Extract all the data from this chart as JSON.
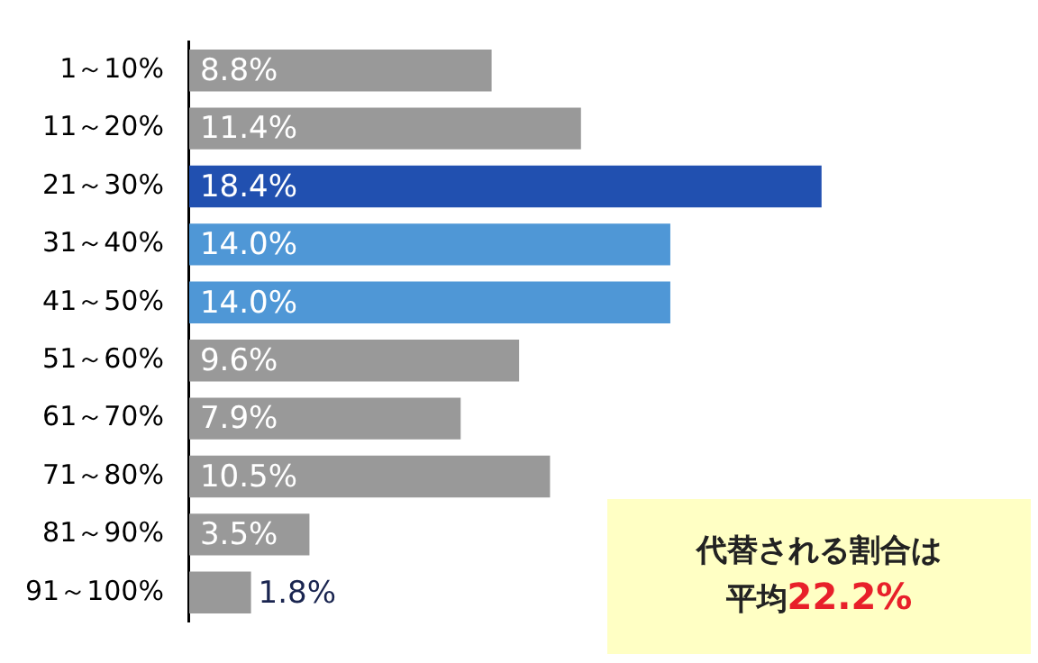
{
  "chart_data": {
    "type": "bar",
    "orientation": "horizontal",
    "categories": [
      "1～10%",
      "11～20%",
      "21～30%",
      "31～40%",
      "41～50%",
      "51～60%",
      "61～70%",
      "71～80%",
      "81～90%",
      "91～100%"
    ],
    "values": [
      8.8,
      11.4,
      18.4,
      14.0,
      14.0,
      9.6,
      7.9,
      10.5,
      3.5,
      1.8
    ],
    "colors": [
      "#999999",
      "#999999",
      "#2150b0",
      "#4f97d6",
      "#4f97d6",
      "#999999",
      "#999999",
      "#999999",
      "#999999",
      "#999999"
    ],
    "value_labels": [
      "8.8%",
      "11.4%",
      "18.4%",
      "14.0%",
      "14.0%",
      "9.6%",
      "7.9%",
      "10.5%",
      "3.5%",
      "1.8%"
    ],
    "grid": false,
    "legend": false,
    "annotations": [
      "代替される割合は",
      "平均22.2%"
    ]
  }
}
